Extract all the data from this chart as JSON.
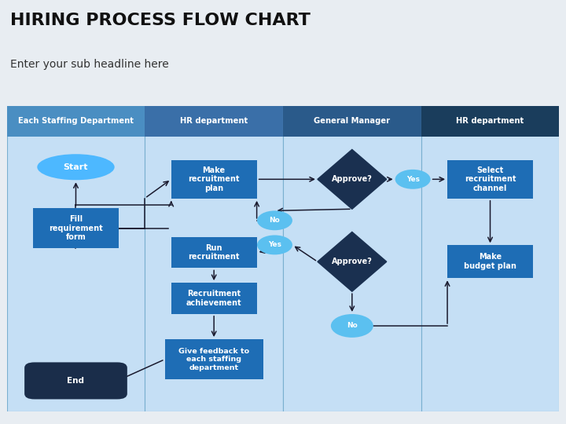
{
  "title": "HIRING PROCESS FLOW CHART",
  "subtitle": "Enter your sub headline here",
  "bg_color": "#e8edf2",
  "chart_bg": "#c5dff5",
  "header_colors": [
    "#4a8ec2",
    "#3a6fa8",
    "#2a5a8a",
    "#1a3d5c"
  ],
  "header_labels": [
    "Each Staffing Department",
    "HR department",
    "General Manager",
    "HR department"
  ],
  "node_rect_color": "#1e6db5",
  "node_dark_color": "#1a3050",
  "node_end_color": "#1a2d4a",
  "node_start_color": "#4db8ff",
  "node_circle_color": "#5bc0f0",
  "arrow_color": "#1a1a2e",
  "line_color": "#333355"
}
